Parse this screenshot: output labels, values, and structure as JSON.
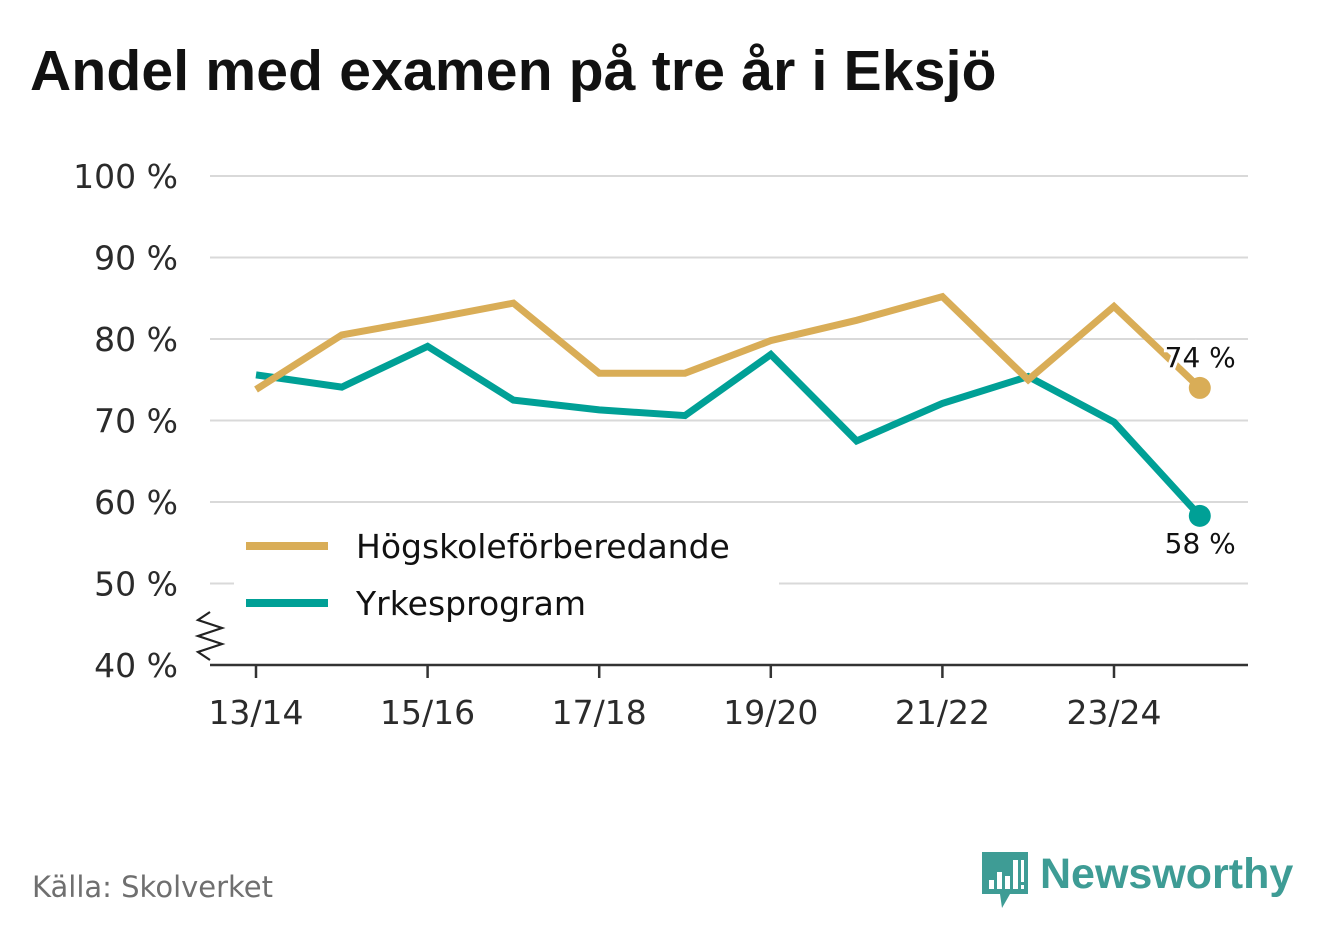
{
  "chart_data": {
    "type": "line",
    "title": "Andel med examen på tre år i Eksjö",
    "categories": [
      "13/14",
      "14/15",
      "15/16",
      "16/17",
      "17/18",
      "18/19",
      "19/20",
      "20/21",
      "21/22",
      "22/23",
      "23/24",
      "24/25"
    ],
    "x_tick_labels": [
      "13/14",
      "15/16",
      "17/18",
      "19/20",
      "21/22",
      "23/24"
    ],
    "y_tick_labels": [
      "40 %",
      "50 %",
      "60 %",
      "70 %",
      "80 %",
      "90 %",
      "100 %"
    ],
    "y_ticks": [
      40,
      50,
      60,
      70,
      80,
      90,
      100
    ],
    "ylim": [
      40,
      100
    ],
    "axis_break": true,
    "grid": true,
    "legend_position": "lower-left",
    "series": [
      {
        "name": "Högskoleförberedande",
        "color": "#d9ad57",
        "values": [
          73.8,
          80.5,
          82.4,
          84.4,
          75.8,
          75.8,
          79.8,
          82.3,
          85.2,
          75.0,
          84.0,
          74.0
        ],
        "end_label": "74 %"
      },
      {
        "name": "Yrkesprogram",
        "color": "#00a096",
        "values": [
          75.6,
          74.1,
          79.1,
          72.5,
          71.3,
          70.6,
          78.1,
          67.5,
          72.1,
          75.4,
          69.8,
          58.3
        ],
        "end_label": "58 %"
      }
    ]
  },
  "footer": {
    "source": "Källa: Skolverket",
    "brand": "Newsworthy",
    "brand_color": "#3e9c95",
    "brand_icon": "bar-chart-speech-bubble-icon"
  }
}
